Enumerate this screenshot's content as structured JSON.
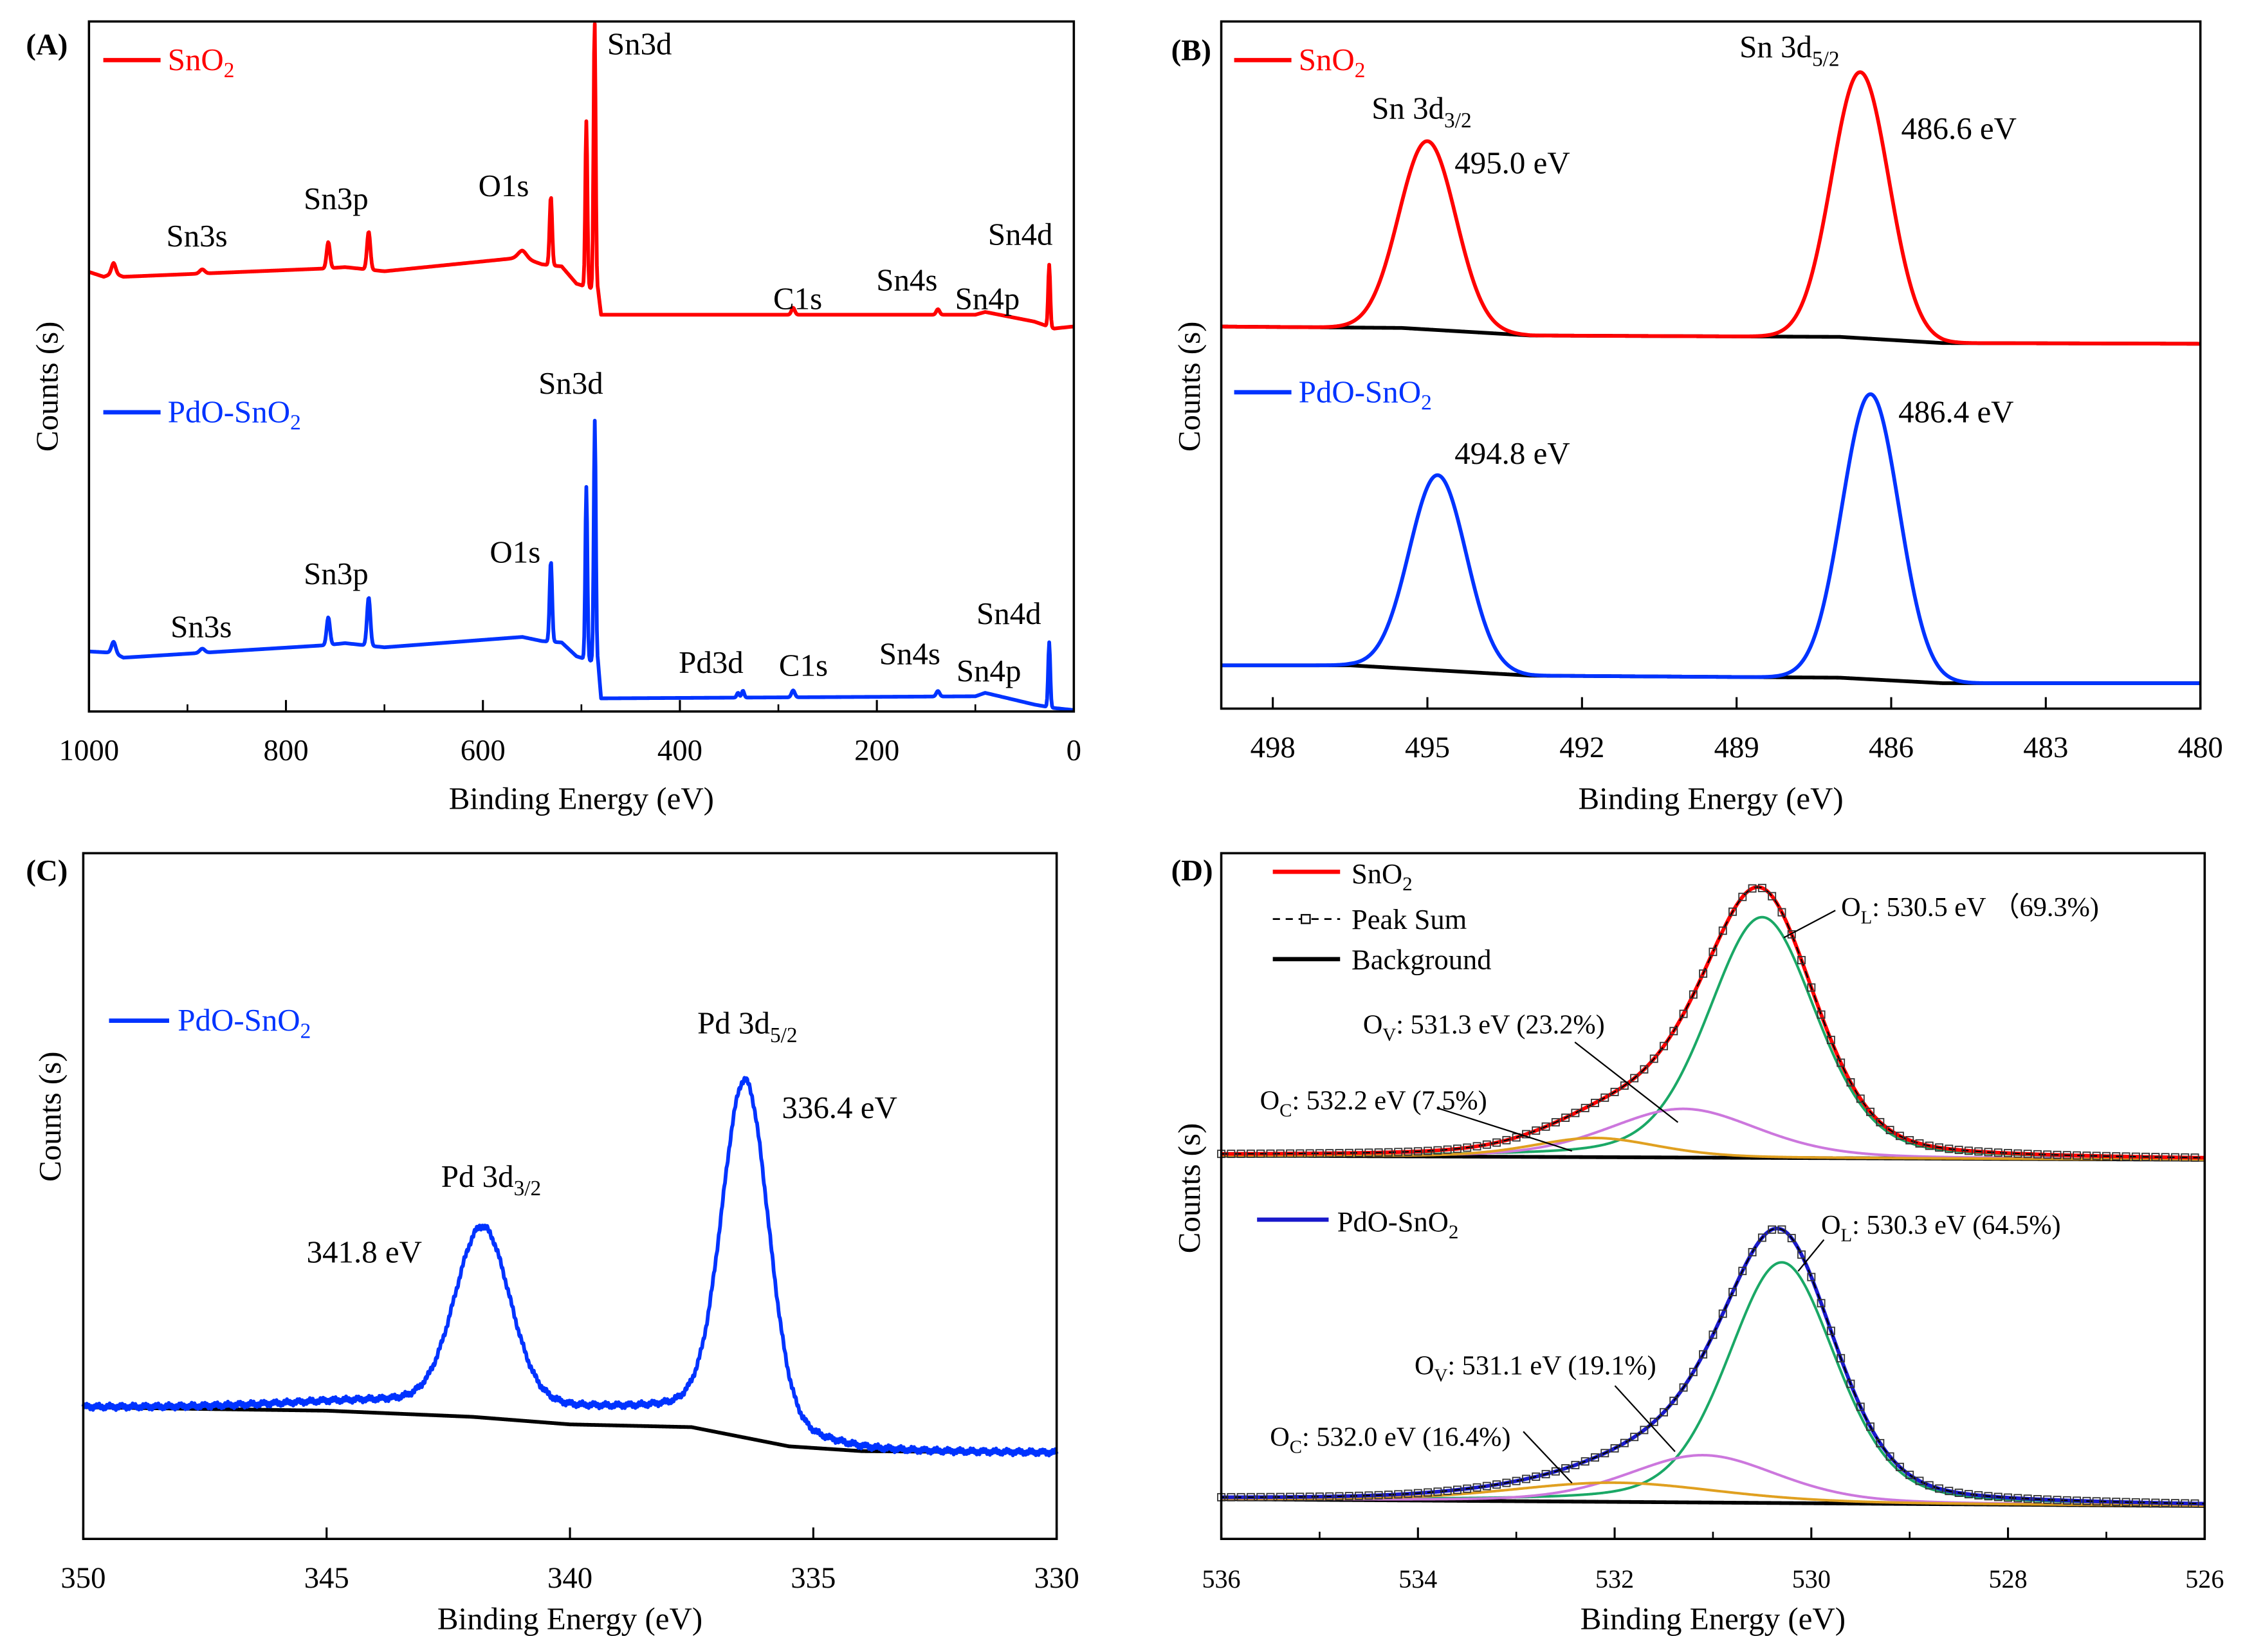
{
  "chart_data": [
    {
      "type": "line",
      "panel": "(A)",
      "xlabel": "Binding Energy (eV)",
      "ylabel": "Counts (s)",
      "xlim": [
        1000,
        0
      ],
      "ylim": [
        0,
        100
      ],
      "x_ticks": [
        1000,
        800,
        600,
        400,
        200,
        0
      ],
      "x_minor": [
        900,
        700,
        500,
        300,
        100
      ],
      "lineshape_mix": 0,
      "series": [
        {
          "name": "SnO2",
          "label": {
            "main": "SnO",
            "sub": "2"
          },
          "color": "#ff0000",
          "baseline": [
            [
              1000,
              63.7
            ],
            [
              985,
              63
            ],
            [
              975,
              63.5
            ],
            [
              965,
              63
            ],
            [
              760,
              64.2
            ],
            [
              740,
              64.4
            ],
            [
              700,
              63.8
            ],
            [
              560,
              65.8
            ],
            [
              540,
              64.8
            ],
            [
              520,
              64.5
            ],
            [
              505,
              62
            ],
            [
              483,
              61
            ],
            [
              480,
              57.5
            ],
            [
              100,
              57.5
            ],
            [
              90,
              57.9
            ],
            [
              40,
              56.5
            ],
            [
              20,
              55.5
            ],
            [
              0,
              55.8
            ]
          ],
          "peaks": [
            [
              975,
              1.5,
              5
            ],
            [
              885,
              0.6,
              6
            ],
            [
              757,
              3.8,
              4
            ],
            [
              716,
              5.5,
              4
            ],
            [
              560,
              1,
              10
            ],
            [
              531,
              10,
              3
            ],
            [
              495,
              24,
              2.5
            ],
            [
              486.6,
              39,
              2.5
            ],
            [
              285,
              1,
              4
            ],
            [
              138,
              0.8,
              4
            ],
            [
              25,
              9,
              2.5
            ]
          ],
          "annotations": [
            "Sn3s",
            "Sn3p",
            "O1s",
            "Sn3d",
            "C1s",
            "Sn4s",
            "Sn4p",
            "Sn4d"
          ]
        },
        {
          "name": "PdO-SnO2",
          "label": {
            "main": "PdO-SnO",
            "sub": "2"
          },
          "color": "#0033ff",
          "baseline": [
            [
              1000,
              8.7
            ],
            [
              975,
              8.5
            ],
            [
              965,
              7.8
            ],
            [
              760,
              9.6
            ],
            [
              740,
              9.9
            ],
            [
              700,
              9.3
            ],
            [
              560,
              10.8
            ],
            [
              540,
              10.2
            ],
            [
              520,
              10
            ],
            [
              505,
              8
            ],
            [
              483,
              7
            ],
            [
              480,
              1.9
            ],
            [
              100,
              2.2
            ],
            [
              90,
              2.7
            ],
            [
              40,
              1
            ],
            [
              20,
              0.5
            ],
            [
              0,
              0.2
            ]
          ],
          "peaks": [
            [
              975,
              1.6,
              5
            ],
            [
              885,
              0.6,
              6
            ],
            [
              757,
              4,
              4
            ],
            [
              716,
              7,
              4
            ],
            [
              531,
              11.7,
              3
            ],
            [
              495,
              25,
              2.5
            ],
            [
              486.4,
              35,
              2.5
            ],
            [
              341,
              0.7,
              3
            ],
            [
              336,
              1,
              3
            ],
            [
              285,
              1,
              4
            ],
            [
              138,
              0.8,
              4
            ],
            [
              25,
              9.4,
              2.5
            ]
          ],
          "annotations": [
            "Sn3s",
            "Sn3p",
            "O1s",
            "Sn3d",
            "Pd3d",
            "C1s",
            "Sn4s",
            "Sn4p",
            "Sn4d"
          ]
        }
      ]
    },
    {
      "type": "line",
      "panel": "(B)",
      "xlabel": "Binding Energy (eV)",
      "ylabel": "Counts (s)",
      "xlim": [
        499,
        480
      ],
      "ylim": [
        0,
        100
      ],
      "x_ticks": [
        498,
        495,
        492,
        489,
        486,
        483,
        480
      ],
      "x_minor": [],
      "lineshape_mix": 0,
      "series": [
        {
          "name": "SnO2",
          "label": {
            "main": "SnO",
            "sub": "2"
          },
          "color": "#ff0000",
          "baseline": [
            [
              499,
              55.6
            ],
            [
              495.5,
              55.4
            ],
            [
              493,
              54.3
            ],
            [
              487,
              54.1
            ],
            [
              485,
              53.2
            ],
            [
              480,
              53.1
            ]
          ],
          "peaks": [
            [
              495.0,
              27.4,
              1.3
            ],
            [
              486.6,
              38.7,
              1.3
            ]
          ]
        },
        {
          "name": "PdO-SnO2",
          "label": {
            "main": "PdO-SnO",
            "sub": "2"
          },
          "color": "#0033ff",
          "baseline": [
            [
              499,
              6.3
            ],
            [
              496.5,
              6.3
            ],
            [
              493,
              4.8
            ],
            [
              487,
              4.5
            ],
            [
              485,
              3.7
            ],
            [
              480,
              3.7
            ]
          ],
          "peaks": [
            [
              494.8,
              28.4,
              1.3
            ],
            [
              486.4,
              41.5,
              1.3
            ]
          ]
        }
      ],
      "background_color": "#000000",
      "annotations": {
        "sn3d32": {
          "main": "Sn 3d",
          "sub": "3/2"
        },
        "sn3d52": {
          "main": "Sn 3d",
          "sub": "5/2"
        },
        "sno2_32_be": "495.0 eV",
        "sno2_52_be": "486.6 eV",
        "pdo_32_be": "494.8 eV",
        "pdo_52_be": "486.4 eV"
      }
    },
    {
      "type": "line",
      "panel": "(C)",
      "xlabel": "Binding Energy (eV)",
      "ylabel": "Counts (s)",
      "xlim": [
        350,
        330
      ],
      "ylim": [
        0,
        100
      ],
      "x_ticks": [
        350,
        345,
        340,
        335,
        330
      ],
      "x_minor": [],
      "lineshape_mix": 0,
      "series": [
        {
          "name": "PdO-SnO2",
          "label": {
            "main": "PdO-SnO",
            "sub": "2"
          },
          "color": "#0033ff",
          "baseline": [
            [
              350,
              19.2
            ],
            [
              345,
              18.7
            ],
            [
              342,
              17.8
            ],
            [
              340,
              16.7
            ],
            [
              337.5,
              16.3
            ],
            [
              335.5,
              13.5
            ],
            [
              334,
              12.8
            ],
            [
              330,
              12.6
            ]
          ],
          "peaks": [
            [
              341.8,
              25,
              1.3
            ],
            [
              336.4,
              48,
              1.1
            ],
            [
              341,
              3,
              8
            ],
            [
              336.5,
              3,
              3
            ]
          ],
          "noise": 0.5
        }
      ],
      "background_color": "#000000",
      "annotations": {
        "pd3d32": {
          "main": "Pd 3d",
          "sub": "3/2"
        },
        "pd3d52": {
          "main": "Pd 3d",
          "sub": "5/2"
        },
        "pd32_be": "341.8 eV",
        "pd52_be": "336.4 eV"
      }
    },
    {
      "type": "line",
      "panel": "(D)",
      "xlabel": "Binding Energy (eV)",
      "ylabel": "Counts (s)",
      "xlim": [
        536,
        526
      ],
      "ylim": [
        0,
        100
      ],
      "x_ticks": [
        536,
        534,
        532,
        530,
        528,
        526
      ],
      "x_minor": [
        535,
        533,
        531,
        529,
        527
      ],
      "lineshape_mix": 0.3,
      "legend": {
        "sno2": {
          "main": "SnO",
          "sub": "2"
        },
        "peak_sum": "Peak Sum",
        "background": "Background",
        "pdo": {
          "main": "PdO-SnO",
          "sub": "2"
        }
      },
      "component_colors": {
        "OL": "#1aa866",
        "OV": "#cc77dd",
        "OC": "#e0a020",
        "background": "#000000",
        "peak_sum": "#000000"
      },
      "series": [
        {
          "name": "SnO2",
          "color": "#ff0000",
          "baseline": [
            [
              536,
              55.9
            ],
            [
              526,
              55.3
            ]
          ],
          "components": [
            {
              "name": "OL",
              "center": 530.5,
              "height": 35.1,
              "fwhm": 1.3,
              "percent": 69.3,
              "label": {
                "main": "O",
                "sub": "L",
                "rest": ": 530.5 eV （69.3%)"
              }
            },
            {
              "name": "OV",
              "center": 531.3,
              "height": 7.1,
              "fwhm": 1.8,
              "percent": 23.2,
              "label": {
                "main": "O",
                "sub": "V",
                "rest": ": 531.3 eV (23.2%)"
              }
            },
            {
              "name": "OC",
              "center": 532.2,
              "height": 2.8,
              "fwhm": 1.5,
              "percent": 7.5,
              "label": {
                "main": "O",
                "sub": "C",
                "rest": ": 532.2 eV (7.5%)"
              }
            }
          ]
        },
        {
          "name": "PdO-SnO2",
          "color": "#1a1acc",
          "baseline": [
            [
              536,
              5.8
            ],
            [
              526,
              4.8
            ]
          ],
          "components": [
            {
              "name": "OL",
              "center": 530.3,
              "height": 35.1,
              "fwhm": 1.3,
              "percent": 64.5,
              "label": {
                "main": "O",
                "sub": "L",
                "rest": ": 530.3 eV (64.5%)"
              }
            },
            {
              "name": "OV",
              "center": 531.1,
              "height": 6.9,
              "fwhm": 1.8,
              "percent": 19.1,
              "label": {
                "main": "O",
                "sub": "V",
                "rest": ": 531.1 eV (19.1%)"
              }
            },
            {
              "name": "OC",
              "center": 532.0,
              "height": 2.8,
              "fwhm": 2.5,
              "percent": 16.4,
              "label": {
                "main": "O",
                "sub": "C",
                "rest": ": 532.0 eV (16.4%)"
              }
            }
          ]
        }
      ]
    }
  ]
}
